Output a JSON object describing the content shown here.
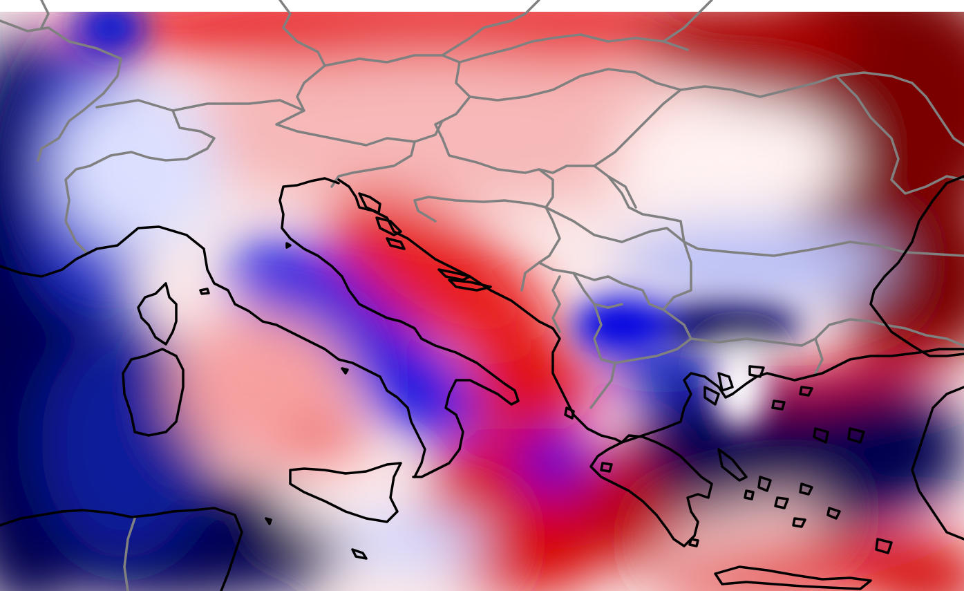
{
  "map": {
    "title": "",
    "colorscale": {
      "deep_negative": "#000050",
      "negative": "#0000e6",
      "light_negative": "#c8c8ff",
      "neutral": "#ffffff",
      "light_positive": "#ffc8c8",
      "positive": "#e60000",
      "deep_positive": "#780000"
    },
    "coastline_color": "#000000",
    "border_color": "#808080",
    "background": "#ffffff"
  }
}
